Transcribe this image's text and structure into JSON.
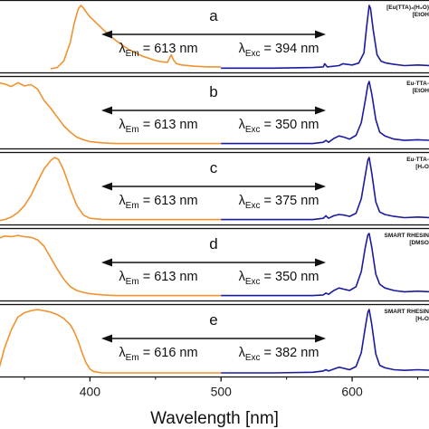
{
  "chart_data": {
    "type": "line",
    "xlabel": "Wavelength [nm]",
    "xlim": [
      330,
      660
    ],
    "xticks": [
      400,
      500,
      600
    ],
    "colors": {
      "excitation": "#f0922f",
      "emission": "#1c1a9e",
      "frame": "#111111"
    },
    "panels": [
      {
        "letter": "a",
        "sample_label": [
          "[Eu(TTA)₃(H₂O)",
          "[EtOH"
        ],
        "emission_label": "λEm = 613 nm",
        "excitation_label": "λExc = 394 nm",
        "excitation_spectrum": {
          "x": [
            370,
            375,
            380,
            385,
            388,
            391,
            393,
            395,
            397,
            400,
            405,
            410,
            415,
            420,
            430,
            440,
            450,
            455,
            459,
            462,
            464,
            466,
            470,
            480,
            490,
            500
          ],
          "y": [
            0.0,
            0.02,
            0.12,
            0.42,
            0.72,
            0.94,
            1.0,
            0.96,
            0.9,
            0.82,
            0.72,
            0.62,
            0.53,
            0.44,
            0.3,
            0.2,
            0.13,
            0.11,
            0.1,
            0.22,
            0.13,
            0.08,
            0.06,
            0.04,
            0.03,
            0.03
          ]
        },
        "emission_spectrum": {
          "x": [
            500,
            540,
            570,
            578,
            579,
            581,
            590,
            593,
            596,
            600,
            605,
            609,
            611,
            613,
            614,
            616,
            619,
            622,
            626,
            632,
            640,
            650,
            660
          ],
          "y": [
            0.01,
            0.01,
            0.02,
            0.03,
            0.08,
            0.03,
            0.05,
            0.08,
            0.07,
            0.06,
            0.09,
            0.25,
            0.65,
            1.0,
            0.95,
            0.62,
            0.22,
            0.12,
            0.09,
            0.07,
            0.05,
            0.06,
            0.05
          ]
        }
      },
      {
        "letter": "b",
        "sample_label": [
          "Eu-TTA-",
          "[EtOH"
        ],
        "emission_label": "λEm = 613 nm",
        "excitation_label": "λExc = 350 nm",
        "excitation_spectrum": {
          "x": [
            330,
            335,
            340,
            345,
            350,
            355,
            360,
            365,
            370,
            375,
            380,
            385,
            390,
            395,
            400,
            405,
            410,
            420,
            440,
            460,
            480,
            500
          ],
          "y": [
            0.98,
            0.96,
            0.92,
            0.98,
            0.93,
            0.95,
            0.88,
            0.7,
            0.58,
            0.44,
            0.3,
            0.2,
            0.12,
            0.08,
            0.05,
            0.04,
            0.03,
            0.02,
            0.02,
            0.02,
            0.02,
            0.02
          ]
        },
        "emission_spectrum": {
          "x": [
            500,
            540,
            570,
            578,
            580,
            582,
            586,
            590,
            594,
            598,
            603,
            607,
            610,
            612,
            613,
            615,
            618,
            621,
            625,
            632,
            640,
            650,
            660
          ],
          "y": [
            0.02,
            0.02,
            0.02,
            0.04,
            0.07,
            0.04,
            0.1,
            0.14,
            0.12,
            0.09,
            0.15,
            0.35,
            0.7,
            0.95,
            1.0,
            0.8,
            0.4,
            0.2,
            0.14,
            0.09,
            0.07,
            0.08,
            0.07
          ]
        }
      },
      {
        "letter": "c",
        "sample_label": [
          "Eu-TTA-",
          "[H₂O"
        ],
        "emission_label": "λEm = 613 nm",
        "excitation_label": "λExc = 375 nm",
        "excitation_spectrum": {
          "x": [
            330,
            335,
            340,
            345,
            350,
            355,
            360,
            365,
            370,
            373,
            376,
            380,
            385,
            390,
            395,
            400,
            410,
            420,
            440,
            460,
            480,
            500
          ],
          "y": [
            0.0,
            0.02,
            0.06,
            0.13,
            0.24,
            0.4,
            0.62,
            0.82,
            0.95,
            1.0,
            0.97,
            0.8,
            0.5,
            0.24,
            0.09,
            0.04,
            0.02,
            0.02,
            0.02,
            0.02,
            0.02,
            0.02
          ]
        },
        "emission_spectrum": {
          "x": [
            500,
            540,
            570,
            578,
            580,
            582,
            586,
            590,
            594,
            598,
            603,
            607,
            610,
            612,
            613,
            615,
            618,
            621,
            625,
            632,
            640,
            650,
            660
          ],
          "y": [
            0.02,
            0.02,
            0.02,
            0.04,
            0.08,
            0.04,
            0.08,
            0.1,
            0.09,
            0.07,
            0.12,
            0.35,
            0.72,
            0.96,
            1.0,
            0.75,
            0.3,
            0.14,
            0.1,
            0.07,
            0.05,
            0.06,
            0.05
          ]
        }
      },
      {
        "letter": "d",
        "sample_label": [
          "SMART RHESIN",
          "[DMSO"
        ],
        "emission_label": "λEm = 613 nm",
        "excitation_label": "λExc = 350 nm",
        "excitation_spectrum": {
          "x": [
            330,
            335,
            340,
            345,
            350,
            355,
            360,
            365,
            370,
            375,
            380,
            385,
            390,
            395,
            400,
            405,
            410,
            420,
            440,
            460,
            480,
            500
          ],
          "y": [
            0.92,
            0.96,
            0.95,
            0.97,
            0.95,
            0.94,
            0.9,
            0.8,
            0.62,
            0.44,
            0.28,
            0.16,
            0.1,
            0.07,
            0.05,
            0.04,
            0.03,
            0.02,
            0.02,
            0.02,
            0.02,
            0.02
          ]
        },
        "emission_spectrum": {
          "x": [
            500,
            540,
            570,
            578,
            580,
            582,
            586,
            590,
            594,
            598,
            603,
            607,
            610,
            612,
            613,
            615,
            618,
            621,
            625,
            632,
            640,
            650,
            660
          ],
          "y": [
            0.02,
            0.02,
            0.02,
            0.03,
            0.06,
            0.04,
            0.1,
            0.14,
            0.12,
            0.1,
            0.16,
            0.4,
            0.78,
            0.98,
            1.0,
            0.78,
            0.36,
            0.2,
            0.14,
            0.1,
            0.08,
            0.09,
            0.08
          ]
        }
      },
      {
        "letter": "e",
        "sample_label": [
          "SMART RHESIN",
          "[H₂O"
        ],
        "emission_label": "λEm = 616 nm",
        "excitation_label": "λExc = 382 nm",
        "excitation_spectrum": {
          "x": [
            330,
            335,
            340,
            345,
            350,
            355,
            360,
            365,
            370,
            375,
            380,
            385,
            388,
            391,
            394,
            397,
            400,
            403,
            406,
            410,
            420,
            440,
            460,
            480,
            500
          ],
          "y": [
            0.02,
            0.4,
            0.68,
            0.88,
            0.95,
            0.98,
            1.0,
            0.98,
            0.96,
            0.92,
            0.86,
            0.76,
            0.65,
            0.5,
            0.32,
            0.16,
            0.06,
            0.02,
            0.01,
            0.0,
            0.0,
            0.0,
            0.0,
            0.0,
            0.0
          ]
        },
        "emission_spectrum": {
          "x": [
            500,
            540,
            570,
            578,
            580,
            582,
            586,
            590,
            594,
            598,
            603,
            607,
            610,
            612,
            613,
            615,
            618,
            621,
            625,
            632,
            640,
            650,
            660
          ],
          "y": [
            0.0,
            0.0,
            0.01,
            0.03,
            0.05,
            0.03,
            0.06,
            0.09,
            0.07,
            0.05,
            0.1,
            0.32,
            0.72,
            0.96,
            1.0,
            0.76,
            0.3,
            0.12,
            0.08,
            0.05,
            0.04,
            0.05,
            0.04
          ]
        }
      }
    ]
  }
}
